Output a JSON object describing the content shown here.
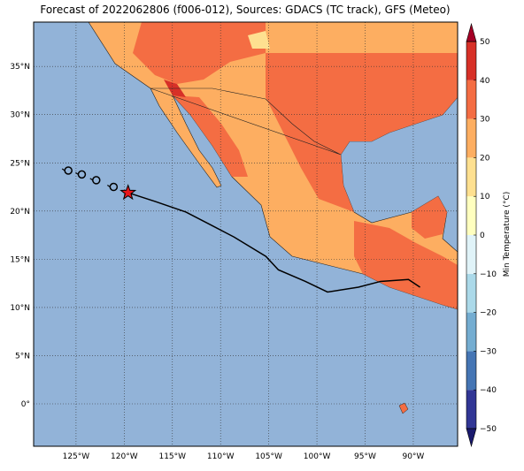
{
  "map": {
    "title": "Forecast of 2022062806 (f006-012), Sources: GDACS (TC track), GFS (Meteo)",
    "xlim": [
      -129.4,
      -85.4
    ],
    "ylim": [
      -4.4,
      39.6
    ],
    "xticks": [
      {
        "value": -125,
        "label": "125°W"
      },
      {
        "value": -120,
        "label": "120°W"
      },
      {
        "value": -115,
        "label": "115°W"
      },
      {
        "value": -110,
        "label": "110°W"
      },
      {
        "value": -105,
        "label": "105°W"
      },
      {
        "value": -100,
        "label": "100°W"
      },
      {
        "value": -95,
        "label": "95°W"
      },
      {
        "value": -90,
        "label": "90°W"
      }
    ],
    "yticks": [
      {
        "value": 0,
        "label": "0°"
      },
      {
        "value": 5,
        "label": "5°N"
      },
      {
        "value": 10,
        "label": "10°N"
      },
      {
        "value": 15,
        "label": "15°N"
      },
      {
        "value": 20,
        "label": "20°N"
      },
      {
        "value": 25,
        "label": "25°N"
      },
      {
        "value": 30,
        "label": "30°N"
      },
      {
        "value": 35,
        "label": "35°N"
      }
    ],
    "grid": true,
    "colorbar": {
      "label": "Min Temperature (°C)",
      "lim": [
        -50,
        50
      ],
      "ticks": [
        {
          "value": -50,
          "label": "−50"
        },
        {
          "value": -40,
          "label": "−40"
        },
        {
          "value": -30,
          "label": "−30"
        },
        {
          "value": -20,
          "label": "−20"
        },
        {
          "value": -10,
          "label": "−10"
        },
        0,
        10,
        20,
        30,
        40,
        50
      ],
      "colors": [
        "#313695",
        "#4575b4",
        "#74add1",
        "#abd9e9",
        "#e0f3f8",
        "#ffffbf",
        "#fee090",
        "#fdae61",
        "#f46d43",
        "#d73027"
      ],
      "under_color": "#1a1a6e",
      "over_color": "#a50026"
    },
    "track": {
      "color": "#000000",
      "lon": [
        -119.6,
        -116.8,
        -113.6,
        -110.9,
        -108.6,
        -105.3,
        -104.0,
        -101.2,
        -98.9,
        -95.7,
        -93.4,
        -90.5,
        -89.3
      ],
      "lat": [
        21.9,
        21.0,
        19.9,
        18.5,
        17.3,
        15.3,
        13.9,
        12.7,
        11.6,
        12.1,
        12.7,
        12.9,
        12.1
      ]
    },
    "past_positions": {
      "lon": [
        -125.8,
        -124.4,
        -122.9,
        -121.1
      ],
      "lat": [
        24.2,
        23.8,
        23.2,
        22.5
      ]
    },
    "current_position": {
      "lon": -119.6,
      "lat": 21.9,
      "color": "#e8161b"
    }
  }
}
